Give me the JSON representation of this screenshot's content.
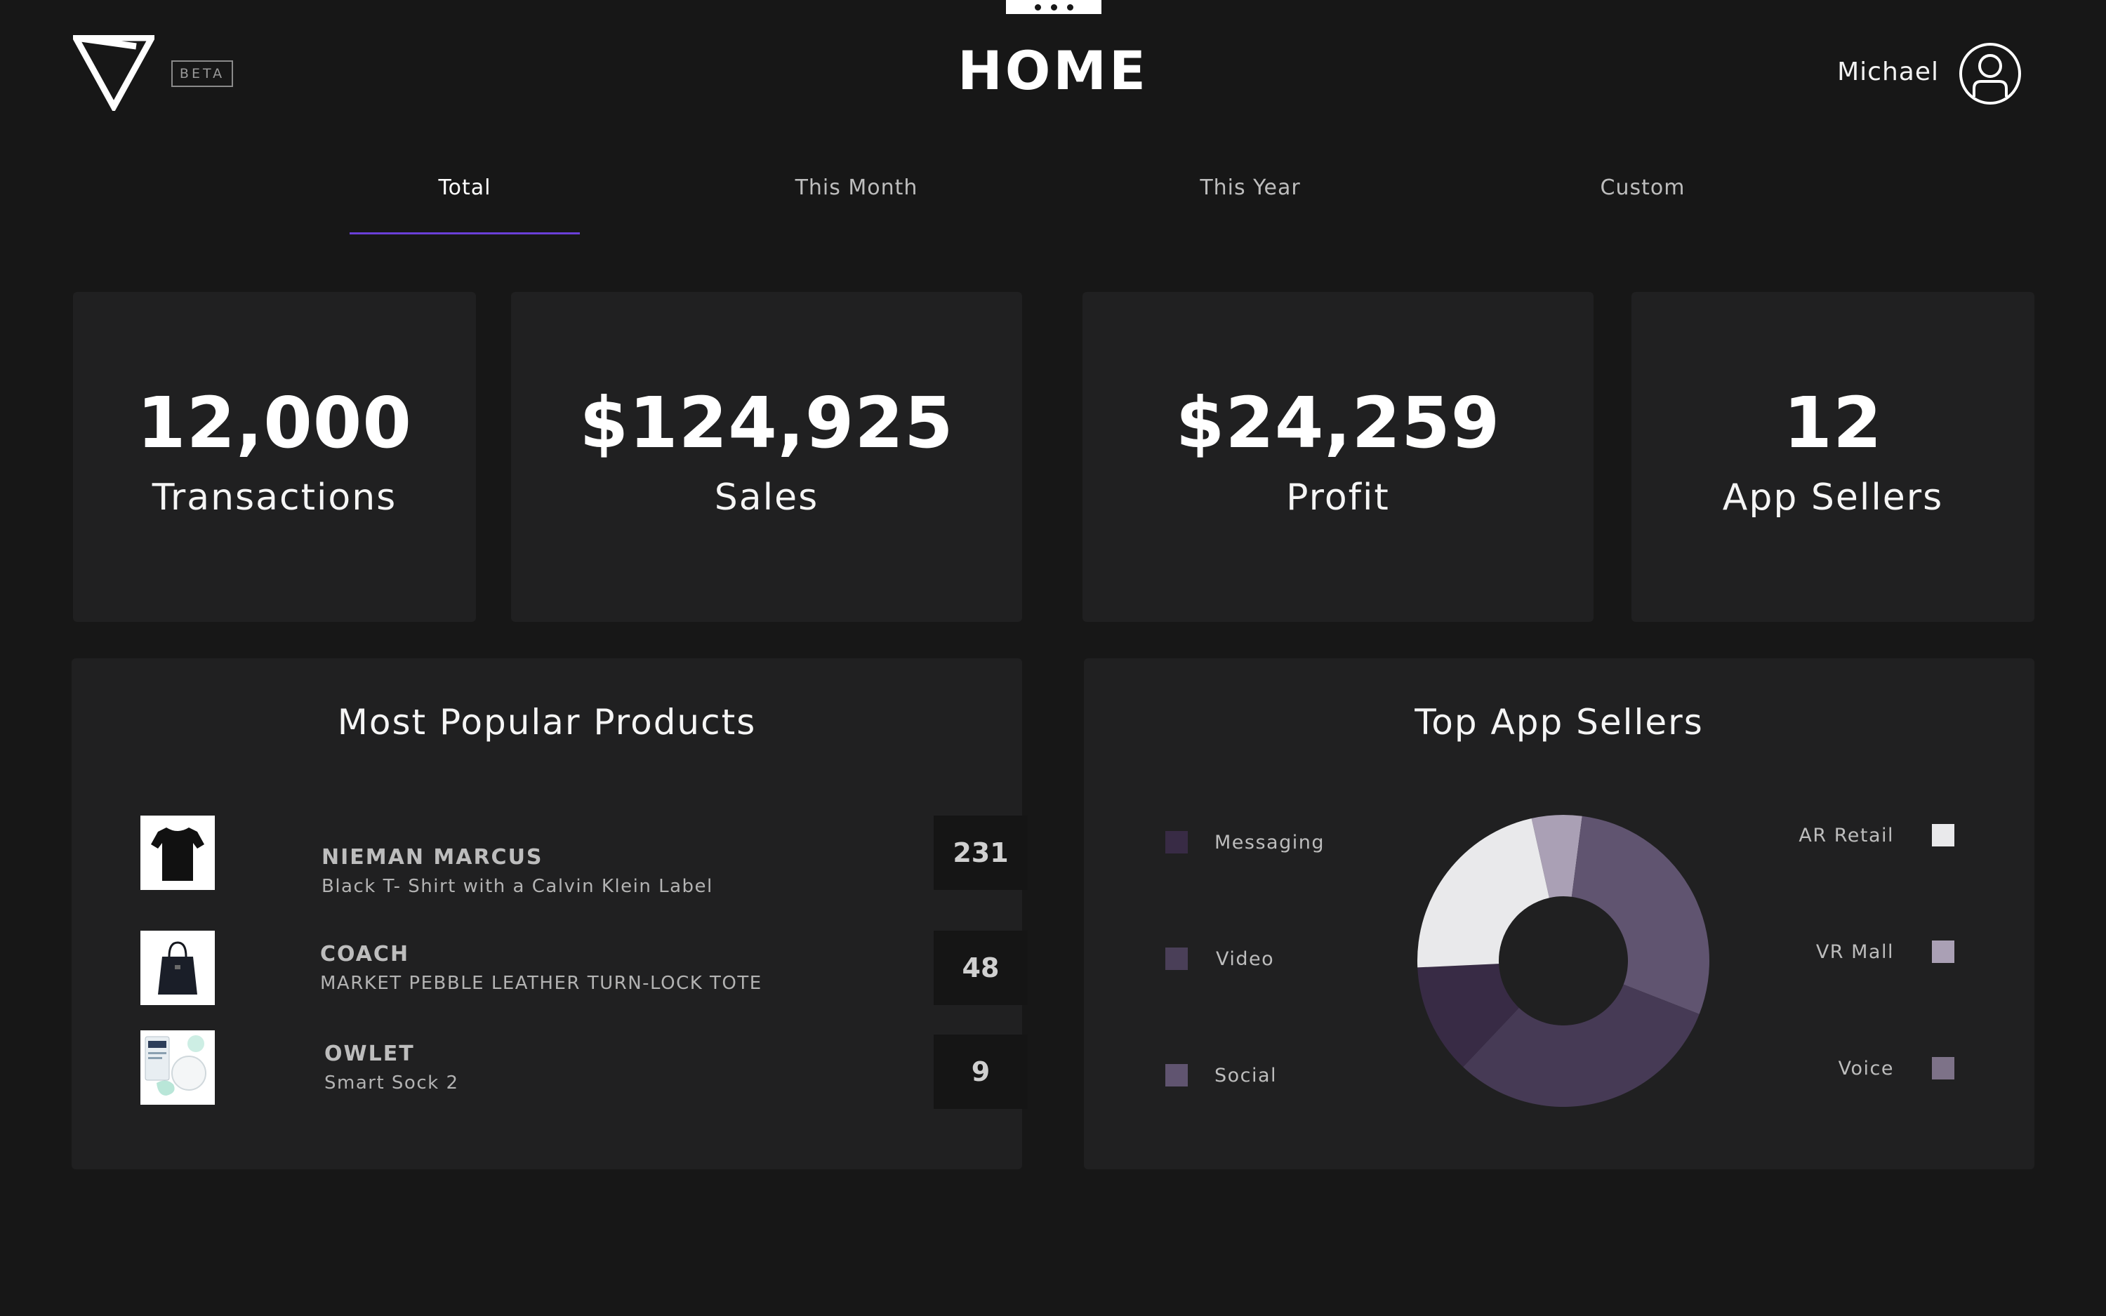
{
  "header": {
    "beta_label": "BETA",
    "title": "HOME",
    "user_name": "Michael"
  },
  "tabs": [
    {
      "label": "Total",
      "active": true
    },
    {
      "label": "This Month",
      "active": false
    },
    {
      "label": "This Year",
      "active": false
    },
    {
      "label": "Custom",
      "active": false
    }
  ],
  "stats": [
    {
      "value": "12,000",
      "label": "Transactions"
    },
    {
      "value": "$124,925",
      "label": "Sales"
    },
    {
      "value": "$24,259",
      "label": "Profit"
    },
    {
      "value": "12",
      "label": "App Sellers"
    }
  ],
  "popular_products": {
    "title": "Most Popular Products",
    "items": [
      {
        "brand": "NIEMAN MARCUS",
        "description": "Black T- Shirt  with a Calvin Klein Label",
        "count": "231",
        "icon": "tshirt-icon"
      },
      {
        "brand": "COACH",
        "description": "MARKET PEBBLE LEATHER TURN-LOCK TOTE",
        "count": "48",
        "icon": "tote-bag-icon"
      },
      {
        "brand": "OWLET",
        "description": "Smart Sock 2",
        "count": "9",
        "icon": "smart-sock-icon"
      }
    ]
  },
  "top_sellers": {
    "title": "Top App Sellers",
    "legend_left": [
      {
        "label": "Messaging",
        "color": "#382b45"
      },
      {
        "label": "Video",
        "color": "#4a3f58"
      },
      {
        "label": "Social",
        "color": "#605470"
      }
    ],
    "legend_right": [
      {
        "label": "AR Retail",
        "color": "#e9e9eb"
      },
      {
        "label": "VR Mall",
        "color": "#aaa0b5"
      },
      {
        "label": "Voice",
        "color": "#7d7288"
      }
    ]
  },
  "chart_data": {
    "type": "pie",
    "donut": true,
    "categories": [
      "VR Mall",
      "Voice",
      "Video",
      "Messaging",
      "AR Retail"
    ],
    "values": [
      5,
      26,
      28,
      11,
      20
    ],
    "colors": [
      "#aaa0b5",
      "#605470",
      "#463a55",
      "#382b45",
      "#e9e9eb"
    ]
  }
}
